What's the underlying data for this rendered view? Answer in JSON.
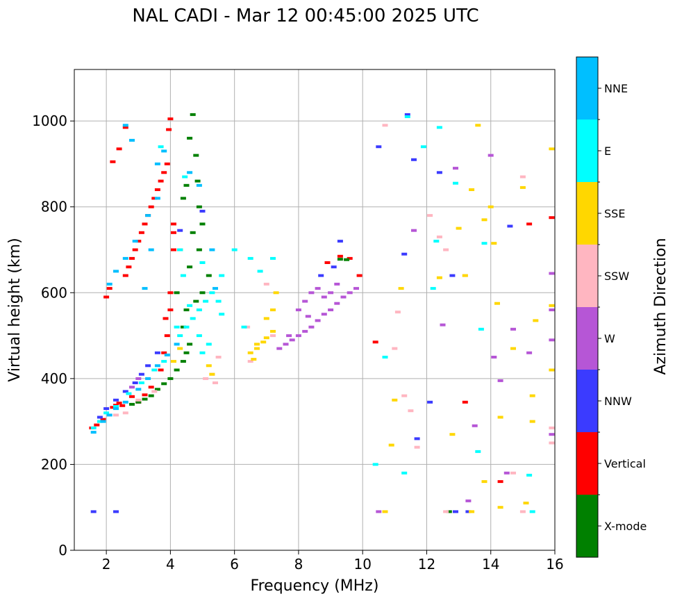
{
  "chart_data": {
    "type": "scatter",
    "title": "NAL CADI - Mar 12 00:45:00 2025 UTC",
    "xlabel": "Frequency (MHz)",
    "ylabel": "Virtual height (km)",
    "xlim": [
      1,
      16
    ],
    "ylim": [
      0,
      1120
    ],
    "xticks": [
      2,
      4,
      6,
      8,
      10,
      12,
      14,
      16
    ],
    "yticks": [
      0,
      200,
      400,
      600,
      800,
      1000
    ],
    "grid": true,
    "colorbar": {
      "label": "Azimuth Direction",
      "categories": [
        {
          "name": "X-mode",
          "color": "#008000"
        },
        {
          "name": "Vertical",
          "color": "#ff0000"
        },
        {
          "name": "NNW",
          "color": "#3b3bff"
        },
        {
          "name": "W",
          "color": "#b656d6"
        },
        {
          "name": "SSW",
          "color": "#ffb6c1"
        },
        {
          "name": "SSE",
          "color": "#ffd700"
        },
        {
          "name": "E",
          "color": "#00ffff"
        },
        {
          "name": "NNE",
          "color": "#00bfff"
        }
      ]
    },
    "series": [
      {
        "name": "Vertical",
        "points": [
          [
            1.55,
            285
          ],
          [
            1.7,
            292
          ],
          [
            1.9,
            305
          ],
          [
            2.0,
            590
          ],
          [
            2.1,
            610
          ],
          [
            2.2,
            333
          ],
          [
            2.3,
            338
          ],
          [
            2.4,
            343
          ],
          [
            2.5,
            337
          ],
          [
            2.6,
            640
          ],
          [
            2.7,
            660
          ],
          [
            2.8,
            680
          ],
          [
            2.9,
            700
          ],
          [
            3.0,
            720
          ],
          [
            3.1,
            740
          ],
          [
            3.2,
            760
          ],
          [
            3.3,
            780
          ],
          [
            3.4,
            800
          ],
          [
            3.5,
            820
          ],
          [
            3.6,
            840
          ],
          [
            3.7,
            860
          ],
          [
            3.8,
            880
          ],
          [
            3.9,
            900
          ],
          [
            3.95,
            980
          ],
          [
            4.0,
            1005
          ],
          [
            2.2,
            905
          ],
          [
            2.4,
            935
          ],
          [
            2.6,
            985
          ],
          [
            2.8,
            358
          ],
          [
            3.0,
            345
          ],
          [
            3.2,
            362
          ],
          [
            3.4,
            380
          ],
          [
            3.7,
            420
          ],
          [
            3.8,
            460
          ],
          [
            3.9,
            500
          ],
          [
            4.0,
            560
          ],
          [
            4.0,
            600
          ],
          [
            3.85,
            540
          ],
          [
            4.1,
            760
          ],
          [
            4.1,
            700
          ],
          [
            4.1,
            740
          ],
          [
            8.9,
            670
          ],
          [
            9.3,
            685
          ],
          [
            9.6,
            680
          ],
          [
            9.9,
            640
          ],
          [
            10.4,
            485
          ],
          [
            13.2,
            345
          ],
          [
            14.3,
            160
          ],
          [
            15.2,
            760
          ],
          [
            15.9,
            775
          ]
        ]
      },
      {
        "name": "X-mode",
        "points": [
          [
            2.8,
            340
          ],
          [
            3.0,
            345
          ],
          [
            3.2,
            352
          ],
          [
            3.4,
            360
          ],
          [
            3.6,
            375
          ],
          [
            3.8,
            388
          ],
          [
            4.0,
            400
          ],
          [
            4.2,
            420
          ],
          [
            4.4,
            440
          ],
          [
            4.5,
            460
          ],
          [
            4.6,
            480
          ],
          [
            4.2,
            600
          ],
          [
            4.3,
            700
          ],
          [
            4.4,
            820
          ],
          [
            4.5,
            850
          ],
          [
            4.6,
            960
          ],
          [
            4.7,
            1015
          ],
          [
            4.8,
            920
          ],
          [
            4.85,
            860
          ],
          [
            4.9,
            800
          ],
          [
            5.0,
            760
          ],
          [
            4.9,
            700
          ],
          [
            4.7,
            740
          ],
          [
            5.2,
            640
          ],
          [
            4.6,
            660
          ],
          [
            4.8,
            580
          ],
          [
            5.0,
            600
          ],
          [
            9.3,
            678
          ],
          [
            9.5,
            677
          ],
          [
            12.7,
            90
          ],
          [
            4.5,
            560
          ],
          [
            4.4,
            520
          ]
        ]
      },
      {
        "name": "NNW",
        "points": [
          [
            1.6,
            90
          ],
          [
            2.3,
            90
          ],
          [
            1.8,
            310
          ],
          [
            2.0,
            330
          ],
          [
            2.3,
            350
          ],
          [
            2.6,
            370
          ],
          [
            2.9,
            390
          ],
          [
            3.1,
            410
          ],
          [
            3.3,
            430
          ],
          [
            3.6,
            460
          ],
          [
            4.3,
            745
          ],
          [
            5.0,
            790
          ],
          [
            8.7,
            640
          ],
          [
            9.1,
            660
          ],
          [
            9.3,
            720
          ],
          [
            10.5,
            940
          ],
          [
            11.3,
            690
          ],
          [
            11.6,
            910
          ],
          [
            12.1,
            345
          ],
          [
            12.4,
            880
          ],
          [
            13.3,
            90
          ],
          [
            12.9,
            90
          ],
          [
            14.6,
            755
          ],
          [
            11.7,
            260
          ],
          [
            11.4,
            1015
          ],
          [
            12.8,
            640
          ]
        ]
      },
      {
        "name": "W",
        "points": [
          [
            3.0,
            400
          ],
          [
            2.8,
            380
          ],
          [
            7.4,
            470
          ],
          [
            7.6,
            480
          ],
          [
            7.8,
            490
          ],
          [
            8.0,
            500
          ],
          [
            8.2,
            510
          ],
          [
            8.4,
            520
          ],
          [
            8.6,
            535
          ],
          [
            8.8,
            550
          ],
          [
            9.0,
            560
          ],
          [
            9.2,
            575
          ],
          [
            9.4,
            590
          ],
          [
            9.6,
            600
          ],
          [
            9.8,
            610
          ],
          [
            8.0,
            560
          ],
          [
            8.2,
            580
          ],
          [
            8.4,
            600
          ],
          [
            8.6,
            610
          ],
          [
            8.8,
            590
          ],
          [
            9.0,
            600
          ],
          [
            9.2,
            620
          ],
          [
            8.3,
            545
          ],
          [
            7.7,
            500
          ],
          [
            10.5,
            90
          ],
          [
            11.6,
            745
          ],
          [
            12.5,
            525
          ],
          [
            12.9,
            890
          ],
          [
            13.5,
            290
          ],
          [
            13.3,
            115
          ],
          [
            14.0,
            920
          ],
          [
            14.1,
            450
          ],
          [
            14.3,
            395
          ],
          [
            14.5,
            180
          ],
          [
            14.7,
            515
          ],
          [
            15.2,
            460
          ],
          [
            15.9,
            490
          ],
          [
            15.9,
            645
          ],
          [
            15.9,
            270
          ],
          [
            15.9,
            560
          ]
        ]
      },
      {
        "name": "SSW",
        "points": [
          [
            2.3,
            315
          ],
          [
            2.6,
            320
          ],
          [
            3.0,
            350
          ],
          [
            3.5,
            370
          ],
          [
            5.3,
            410
          ],
          [
            5.4,
            390
          ],
          [
            5.5,
            450
          ],
          [
            5.1,
            400
          ],
          [
            6.5,
            440
          ],
          [
            6.4,
            520
          ],
          [
            7.0,
            620
          ],
          [
            7.2,
            500
          ],
          [
            10.7,
            990
          ],
          [
            11.0,
            470
          ],
          [
            11.1,
            555
          ],
          [
            11.3,
            360
          ],
          [
            11.5,
            325
          ],
          [
            11.7,
            240
          ],
          [
            12.1,
            780
          ],
          [
            12.4,
            730
          ],
          [
            12.6,
            700
          ],
          [
            13.2,
            640
          ],
          [
            14.7,
            180
          ],
          [
            15.0,
            870
          ],
          [
            15.9,
            250
          ],
          [
            15.9,
            285
          ],
          [
            12.6,
            90
          ],
          [
            15.0,
            90
          ]
        ]
      },
      {
        "name": "SSE",
        "points": [
          [
            4.3,
            470
          ],
          [
            4.1,
            440
          ],
          [
            5.2,
            430
          ],
          [
            5.3,
            410
          ],
          [
            6.5,
            460
          ],
          [
            6.7,
            470
          ],
          [
            6.9,
            485
          ],
          [
            7.0,
            495
          ],
          [
            7.2,
            510
          ],
          [
            7.0,
            540
          ],
          [
            7.2,
            560
          ],
          [
            7.3,
            600
          ],
          [
            6.7,
            480
          ],
          [
            6.6,
            445
          ],
          [
            10.7,
            90
          ],
          [
            11.0,
            350
          ],
          [
            11.2,
            610
          ],
          [
            12.4,
            635
          ],
          [
            12.8,
            270
          ],
          [
            13.0,
            750
          ],
          [
            13.2,
            640
          ],
          [
            13.4,
            90
          ],
          [
            13.6,
            990
          ],
          [
            13.8,
            160
          ],
          [
            13.8,
            770
          ],
          [
            14.0,
            800
          ],
          [
            14.1,
            715
          ],
          [
            14.2,
            575
          ],
          [
            14.3,
            310
          ],
          [
            14.3,
            100
          ],
          [
            14.7,
            470
          ],
          [
            15.0,
            845
          ],
          [
            15.1,
            110
          ],
          [
            15.4,
            535
          ],
          [
            15.3,
            360
          ],
          [
            15.3,
            300
          ],
          [
            15.9,
            935
          ],
          [
            15.9,
            570
          ],
          [
            15.9,
            420
          ],
          [
            13.4,
            840
          ],
          [
            10.9,
            245
          ]
        ]
      },
      {
        "name": "E",
        "points": [
          [
            1.6,
            285
          ],
          [
            1.8,
            300
          ],
          [
            2.0,
            320
          ],
          [
            2.3,
            335
          ],
          [
            2.7,
            365
          ],
          [
            3.1,
            390
          ],
          [
            3.5,
            420
          ],
          [
            3.8,
            440
          ],
          [
            4.3,
            500
          ],
          [
            4.5,
            520
          ],
          [
            4.7,
            540
          ],
          [
            4.9,
            560
          ],
          [
            5.1,
            580
          ],
          [
            5.3,
            600
          ],
          [
            5.5,
            580
          ],
          [
            5.6,
            550
          ],
          [
            5.2,
            480
          ],
          [
            5.0,
            460
          ],
          [
            4.9,
            500
          ],
          [
            4.6,
            570
          ],
          [
            4.4,
            640
          ],
          [
            4.3,
            700
          ],
          [
            4.2,
            520
          ],
          [
            3.7,
            940
          ],
          [
            4.45,
            870
          ],
          [
            5.0,
            670
          ],
          [
            5.6,
            640
          ],
          [
            6.0,
            700
          ],
          [
            6.5,
            680
          ],
          [
            6.8,
            650
          ],
          [
            7.2,
            680
          ],
          [
            6.3,
            520
          ],
          [
            10.4,
            200
          ],
          [
            11.3,
            180
          ],
          [
            11.4,
            1010
          ],
          [
            11.9,
            940
          ],
          [
            12.3,
            720
          ],
          [
            12.4,
            985
          ],
          [
            12.9,
            855
          ],
          [
            13.6,
            230
          ],
          [
            13.7,
            515
          ],
          [
            13.8,
            715
          ],
          [
            15.2,
            175
          ],
          [
            15.3,
            90
          ],
          [
            12.2,
            610
          ],
          [
            10.7,
            450
          ]
        ]
      },
      {
        "name": "NNE",
        "points": [
          [
            1.6,
            275
          ],
          [
            1.9,
            300
          ],
          [
            2.1,
            315
          ],
          [
            2.3,
            330
          ],
          [
            2.6,
            345
          ],
          [
            3.0,
            375
          ],
          [
            3.3,
            400
          ],
          [
            3.6,
            430
          ],
          [
            3.9,
            455
          ],
          [
            4.2,
            480
          ],
          [
            3.2,
            610
          ],
          [
            3.4,
            700
          ],
          [
            2.1,
            620
          ],
          [
            2.3,
            650
          ],
          [
            2.6,
            680
          ],
          [
            2.9,
            720
          ],
          [
            3.3,
            780
          ],
          [
            3.6,
            820
          ],
          [
            4.6,
            880
          ],
          [
            3.6,
            900
          ],
          [
            3.8,
            930
          ],
          [
            4.9,
            850
          ],
          [
            5.3,
            700
          ],
          [
            2.6,
            990
          ],
          [
            2.8,
            955
          ],
          [
            5.4,
            610
          ]
        ]
      }
    ]
  }
}
